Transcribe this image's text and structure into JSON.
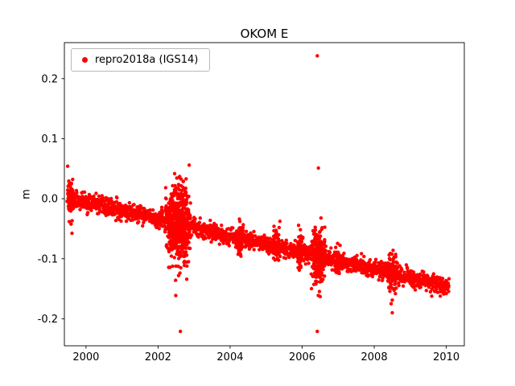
{
  "figure": {
    "background": "#ffffff"
  },
  "chart_data": {
    "type": "scatter",
    "title": "OKOM E",
    "xlabel": "",
    "ylabel": "m",
    "legend": [
      {
        "label": "repro2018a (IGS14)",
        "marker_color": "#ff0000"
      }
    ],
    "legend_position": "upper left",
    "grid": false,
    "xlim": [
      1999.4,
      2010.5
    ],
    "ylim": [
      -0.245,
      0.26
    ],
    "xticks": [
      2000,
      2002,
      2004,
      2006,
      2008,
      2010
    ],
    "yticks": [
      -0.2,
      -0.1,
      0.0,
      0.1,
      0.2
    ],
    "marker": {
      "color": "#ff0000",
      "radius": 2.2
    },
    "series_model": {
      "name": "repro2018a (IGS14)",
      "description": "East component time series, linear trend ~-13.9 mm/yr from ~0.00 m in 1999.5 to ~-0.145 m in 2010, with noisy clusters near 2002.5 and 2006.4 and isolated outliers",
      "seed": 11,
      "x_start": 1999.52,
      "x_end": 2010.08,
      "x_step": 0.005,
      "trend_intercept_2000": -0.006,
      "trend_slope_per_year": -0.0139,
      "noise_sigma": 0.007,
      "noise_bursts": [
        {
          "center": 1999.56,
          "width": 0.1,
          "sigma": 0.014,
          "extra_points": 60
        },
        {
          "center": 2002.55,
          "width": 0.38,
          "sigma": 0.033,
          "extra_points": 420
        },
        {
          "center": 2006.45,
          "width": 0.22,
          "sigma": 0.02,
          "extra_points": 150
        },
        {
          "center": 2008.5,
          "width": 0.15,
          "sigma": 0.013,
          "extra_points": 60
        },
        {
          "center": 2004.25,
          "width": 0.12,
          "sigma": 0.009,
          "extra_points": 40
        },
        {
          "center": 2005.3,
          "width": 0.12,
          "sigma": 0.009,
          "extra_points": 40
        },
        {
          "center": 2005.95,
          "width": 0.1,
          "sigma": 0.01,
          "extra_points": 40
        },
        {
          "center": 2007.0,
          "width": 0.1,
          "sigma": 0.008,
          "extra_points": 30
        }
      ],
      "outliers": [
        [
          2002.6,
          0.037
        ],
        [
          2002.57,
          -0.128
        ],
        [
          2002.62,
          -0.221
        ],
        [
          2006.42,
          0.238
        ],
        [
          2006.45,
          0.051
        ],
        [
          2006.42,
          -0.221
        ],
        [
          2006.5,
          -0.163
        ],
        [
          2006.38,
          -0.128
        ],
        [
          2008.47,
          -0.175
        ],
        [
          2008.5,
          -0.19
        ]
      ]
    }
  }
}
